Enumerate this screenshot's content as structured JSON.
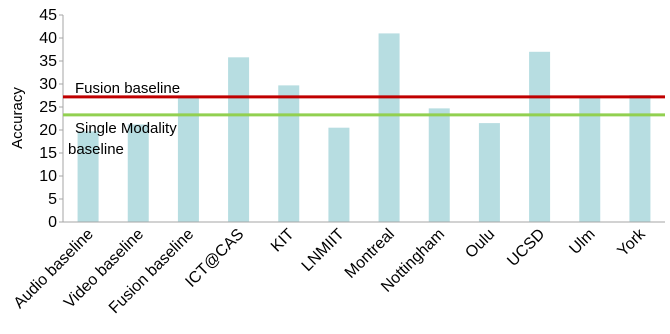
{
  "chart_data": {
    "type": "bar",
    "categories": [
      "Audio baseline",
      "Video baseline",
      "Fusion baseline",
      "ICT@CAS",
      "KIT",
      "LNMIIT",
      "Montreal",
      "Nottingham",
      "Oulu",
      "UCSD",
      "Ulm",
      "York"
    ],
    "values": [
      19.7,
      21.2,
      27.0,
      35.8,
      29.7,
      20.5,
      41.0,
      24.7,
      21.5,
      37.0,
      27.0,
      27.6
    ],
    "ylabel": "Accuracy",
    "ylim": [
      0,
      45
    ],
    "yticks": [
      0,
      5,
      10,
      15,
      20,
      25,
      30,
      35,
      40,
      45
    ],
    "grid": false,
    "colors": {
      "bars": "#b7dde1",
      "fusion_line": "#c00000",
      "single_line": "#92d050",
      "axis": "#a6a6a6"
    },
    "reference_lines": [
      {
        "label": "Fusion baseline",
        "value": 27.2,
        "color": "#c00000"
      },
      {
        "label_lines": [
          "Single Modality",
          "baseline"
        ],
        "value": 23.3,
        "color": "#92d050"
      }
    ]
  }
}
